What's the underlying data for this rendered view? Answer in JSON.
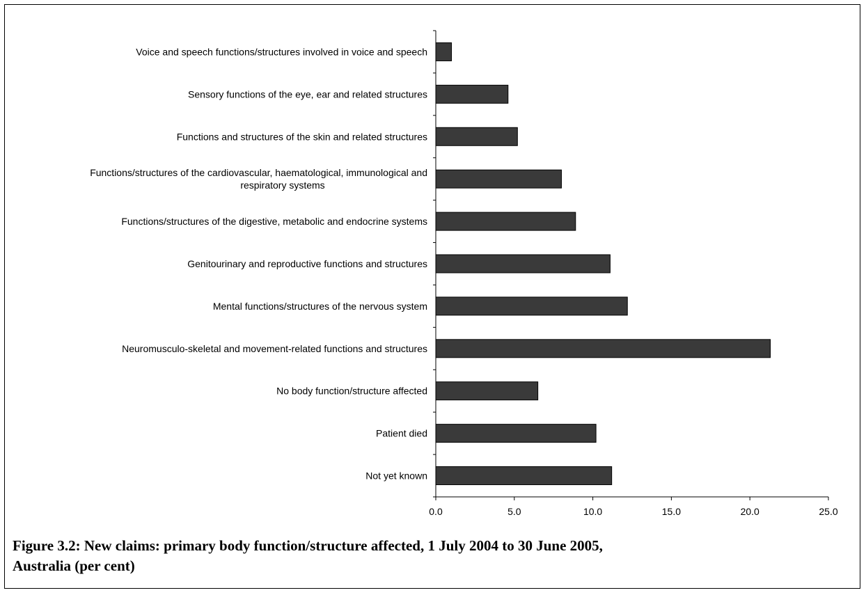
{
  "chart_data": {
    "type": "bar",
    "orientation": "horizontal",
    "categories": [
      [
        "Voice and speech functions/structures involved in voice and speech"
      ],
      [
        "Sensory functions of the eye, ear and related structures"
      ],
      [
        "Functions and structures of the skin and related structures"
      ],
      [
        "Functions/structures of the cardiovascular, haematological, immunological and",
        "respiratory systems"
      ],
      [
        "Functions/structures of the digestive, metabolic and endocrine systems"
      ],
      [
        "Genitourinary and reproductive functions and structures"
      ],
      [
        "Mental functions/structures of the nervous system"
      ],
      [
        "Neuromusculo-skeletal and movement-related functions and structures"
      ],
      [
        "No body function/structure affected"
      ],
      [
        "Patient died"
      ],
      [
        "Not yet known"
      ]
    ],
    "values": [
      1.0,
      4.6,
      5.2,
      8.0,
      8.9,
      11.1,
      12.2,
      21.3,
      6.5,
      10.2,
      11.2
    ],
    "xlim": [
      0,
      25
    ],
    "x_ticks": [
      "0.0",
      "5.0",
      "10.0",
      "15.0",
      "20.0",
      "25.0"
    ],
    "bar_color": "#3a3a3a",
    "grid": false,
    "legend": "none"
  },
  "caption": {
    "line1": "Figure 3.2: New claims: primary body function/structure affected, 1 July 2004 to 30 June 2005,",
    "line2": "Australia (per cent)"
  }
}
